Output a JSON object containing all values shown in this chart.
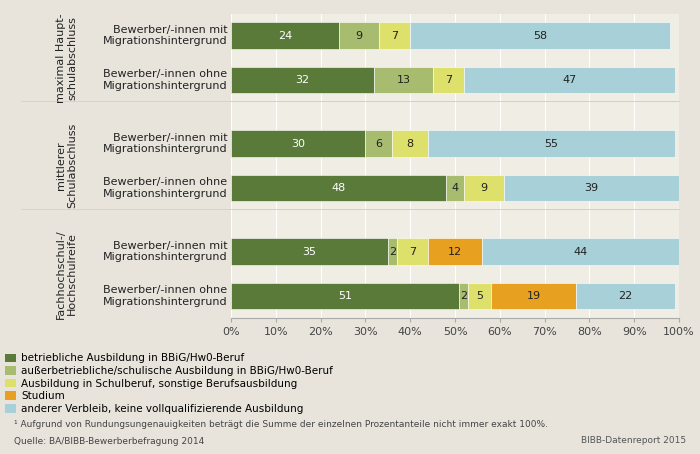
{
  "groups": [
    {
      "group_label": "maximal Haupt-\nschulabschluss",
      "bars": [
        {
          "label": "Bewerber/-innen mit\nMigrationshintergrund",
          "values": [
            24,
            9,
            7,
            0,
            58
          ],
          "texts": [
            "24",
            "9",
            "7",
            "",
            "58"
          ]
        },
        {
          "label": "Bewerber/-innen ohne\nMigrationshintergrund",
          "values": [
            32,
            13,
            7,
            0,
            47
          ],
          "texts": [
            "32",
            "13",
            "7",
            "",
            "47"
          ]
        }
      ]
    },
    {
      "group_label": "mittlerer\nSchulabschluss",
      "bars": [
        {
          "label": "Bewerber/-innen mit\nMigrationshintergrund",
          "values": [
            30,
            6,
            8,
            0,
            55
          ],
          "texts": [
            "30",
            "6",
            "8",
            "",
            "55"
          ]
        },
        {
          "label": "Bewerber/-innen ohne\nMigrationshintergrund",
          "values": [
            48,
            4,
            9,
            0,
            39
          ],
          "texts": [
            "48",
            "4",
            "9",
            "",
            "39"
          ]
        }
      ]
    },
    {
      "group_label": "Fachhochschul-/\nHochschulreife",
      "bars": [
        {
          "label": "Bewerber/-innen mit\nMigrationshintergrund",
          "values": [
            35,
            2,
            7,
            12,
            44
          ],
          "texts": [
            "35",
            "2",
            "7",
            "12",
            "44"
          ]
        },
        {
          "label": "Bewerber/-innen ohne\nMigrationshintergrund",
          "values": [
            51,
            2,
            5,
            19,
            22
          ],
          "texts": [
            "51",
            "2",
            "5",
            "19",
            "22"
          ]
        }
      ]
    }
  ],
  "segment_colors": [
    "#5a7a3a",
    "#a8bc6f",
    "#dde06a",
    "#e8a020",
    "#a8d0d8"
  ],
  "legend_labels": [
    "betriebliche Ausbildung in BBiG/Hw0-Beruf",
    "außerbetriebliche/schulische Ausbildung in BBiG/Hw0-Beruf",
    "Ausbildung in Schulberuf, sonstige Berufsausbildung",
    "Studium",
    "anderer Verbleib, keine vollqualifizierende Ausbildung"
  ],
  "footnote": "¹ Aufgrund von Rundungsungenauigkeiten beträgt die Summe der einzelnen Prozentanteile nicht immer exakt 100%.",
  "source": "Quelle: BA/BIBB-Bewerberbefragung 2014",
  "bibb": "BIBB-Datenreport 2015",
  "background_color": "#e8e4dc",
  "plot_bg_color": "#f0ede4",
  "bar_height": 0.6,
  "text_fontsize": 8,
  "label_fontsize": 8,
  "group_label_fontsize": 8
}
